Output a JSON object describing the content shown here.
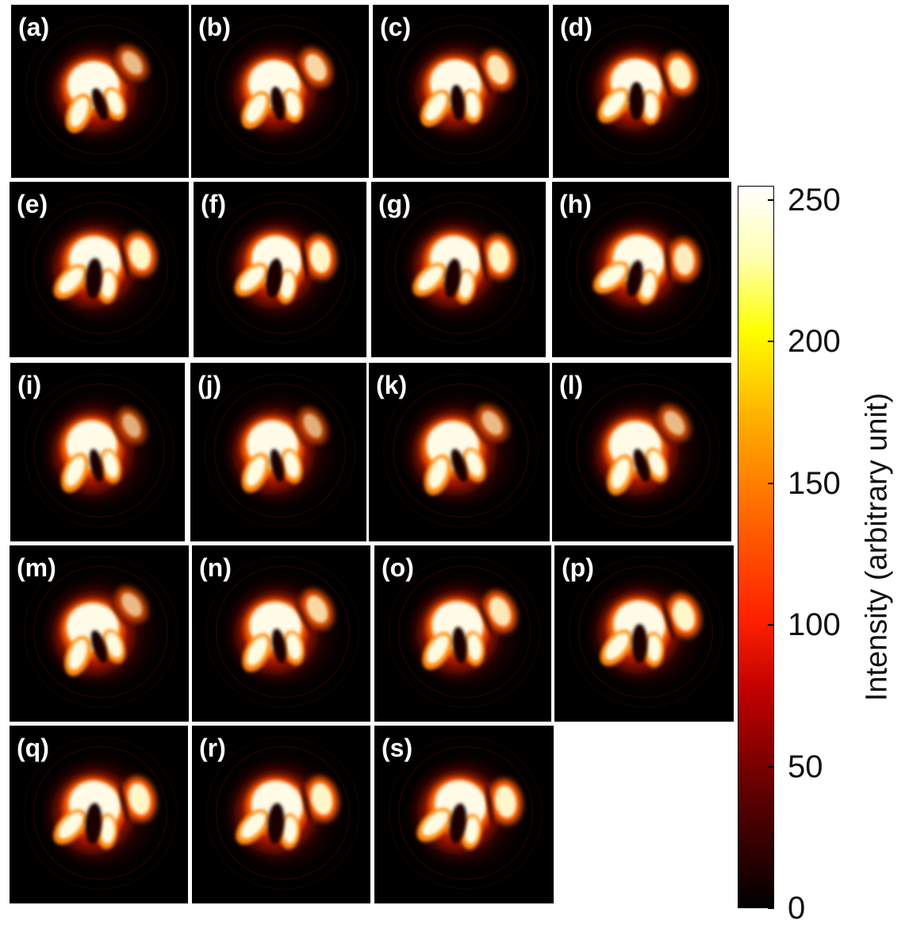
{
  "panels": [
    {
      "label": "(a)",
      "variant": "A"
    },
    {
      "label": "(b)",
      "variant": "B"
    },
    {
      "label": "(c)",
      "variant": "C"
    },
    {
      "label": "(d)",
      "variant": "D"
    },
    {
      "label": "(e)",
      "variant": "E"
    },
    {
      "label": "(f)",
      "variant": "F"
    },
    {
      "label": "(g)",
      "variant": "F"
    },
    {
      "label": "(h)",
      "variant": "G"
    },
    {
      "label": "(i)",
      "variant": "H"
    },
    {
      "label": "(j)",
      "variant": "H"
    },
    {
      "label": "(k)",
      "variant": "A"
    },
    {
      "label": "(l)",
      "variant": "A"
    },
    {
      "label": "(m)",
      "variant": "A"
    },
    {
      "label": "(n)",
      "variant": "B"
    },
    {
      "label": "(o)",
      "variant": "C"
    },
    {
      "label": "(p)",
      "variant": "D"
    },
    {
      "label": "(q)",
      "variant": "E"
    },
    {
      "label": "(r)",
      "variant": "E"
    },
    {
      "label": "(s)",
      "variant": "F"
    }
  ],
  "colorbar": {
    "title": "Intensity (arbitrary unit)",
    "colormap": "hot",
    "range": [
      0,
      255
    ],
    "ticks": [
      "250",
      "200",
      "150",
      "100",
      "50",
      "0"
    ],
    "tick_values": [
      250,
      200,
      150,
      100,
      50,
      0
    ],
    "colors": [
      "#000000",
      "#ff0000",
      "#ffff00",
      "#ffffff"
    ]
  }
}
